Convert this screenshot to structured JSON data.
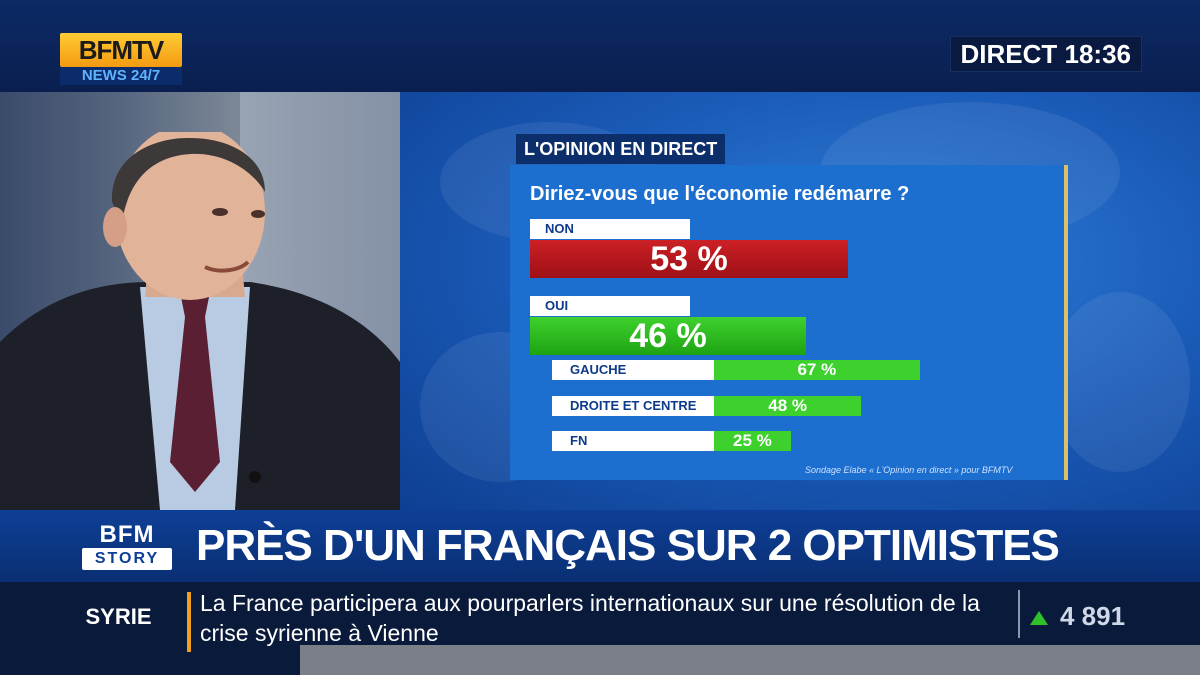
{
  "channel": {
    "logo_main": "BFMTV",
    "logo_sub": "NEWS 24/7",
    "live_status": "DIRECT 18:36"
  },
  "poll": {
    "tab": "L'OPINION EN DIRECT",
    "question": "Diriez-vous que l'économie redémarre ?",
    "source": "Sondage Elabe « L'Opinion en direct » pour BFMTV",
    "answers": [
      {
        "label": "NON",
        "value": 53,
        "display": "53 %",
        "color": "#c41c22"
      },
      {
        "label": "OUI",
        "value": 46,
        "display": "46 %",
        "color": "#2fc12a"
      }
    ],
    "breakdown": [
      {
        "label": "GAUCHE",
        "value": 67,
        "display": "67 %"
      },
      {
        "label": "DROITE ET CENTRE",
        "value": 48,
        "display": "48 %"
      },
      {
        "label": "FN",
        "value": 25,
        "display": "25 %"
      }
    ]
  },
  "headline": {
    "program_logo": "BFM",
    "program_sub": "STORY",
    "text": "PRÈS D'UN FRANÇAIS SUR 2 OPTIMISTES"
  },
  "ticker": {
    "tag": "SYRIE",
    "text": "La France participera aux pourparlers internationaux sur une résolution de la crise syrienne à Vienne",
    "index_value": "4 891",
    "index_direction": "up-arrow-icon"
  },
  "colors": {
    "accent_blue": "#0e3f97",
    "alarm_red": "#c41c22",
    "positive_green": "#2fc12a",
    "logo_orange": "#f39a12"
  }
}
